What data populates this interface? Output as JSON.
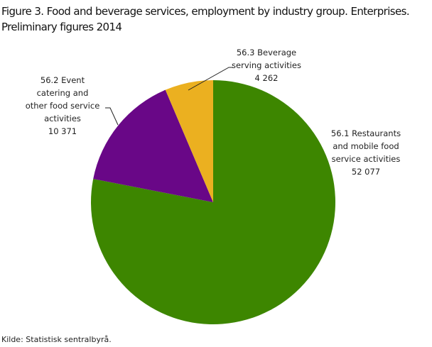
{
  "chart_data": {
    "type": "pie",
    "title": "Figure 3. Food and beverage services, employment by industry group. Enterprises.",
    "subtitle": "Preliminary figures 2014",
    "start_angle": "top, clockwise",
    "slices": [
      {
        "label_lines": [
          "56.1  Restaurants",
          "and mobile  food",
          "service  activities"
        ],
        "value": 52077,
        "value_label": "52 077",
        "color": "#3d8600"
      },
      {
        "label_lines": [
          "56.2  Event",
          "catering  and",
          "other food  service",
          "activities"
        ],
        "value": 10371,
        "value_label": "10 371",
        "color": "#690787"
      },
      {
        "label_lines": [
          "56.3  Beverage",
          "serving  activities"
        ],
        "value": 4262,
        "value_label": "4 262",
        "color": "#ebb020"
      }
    ],
    "source": "Kilde: Statistisk sentralbyrå."
  }
}
